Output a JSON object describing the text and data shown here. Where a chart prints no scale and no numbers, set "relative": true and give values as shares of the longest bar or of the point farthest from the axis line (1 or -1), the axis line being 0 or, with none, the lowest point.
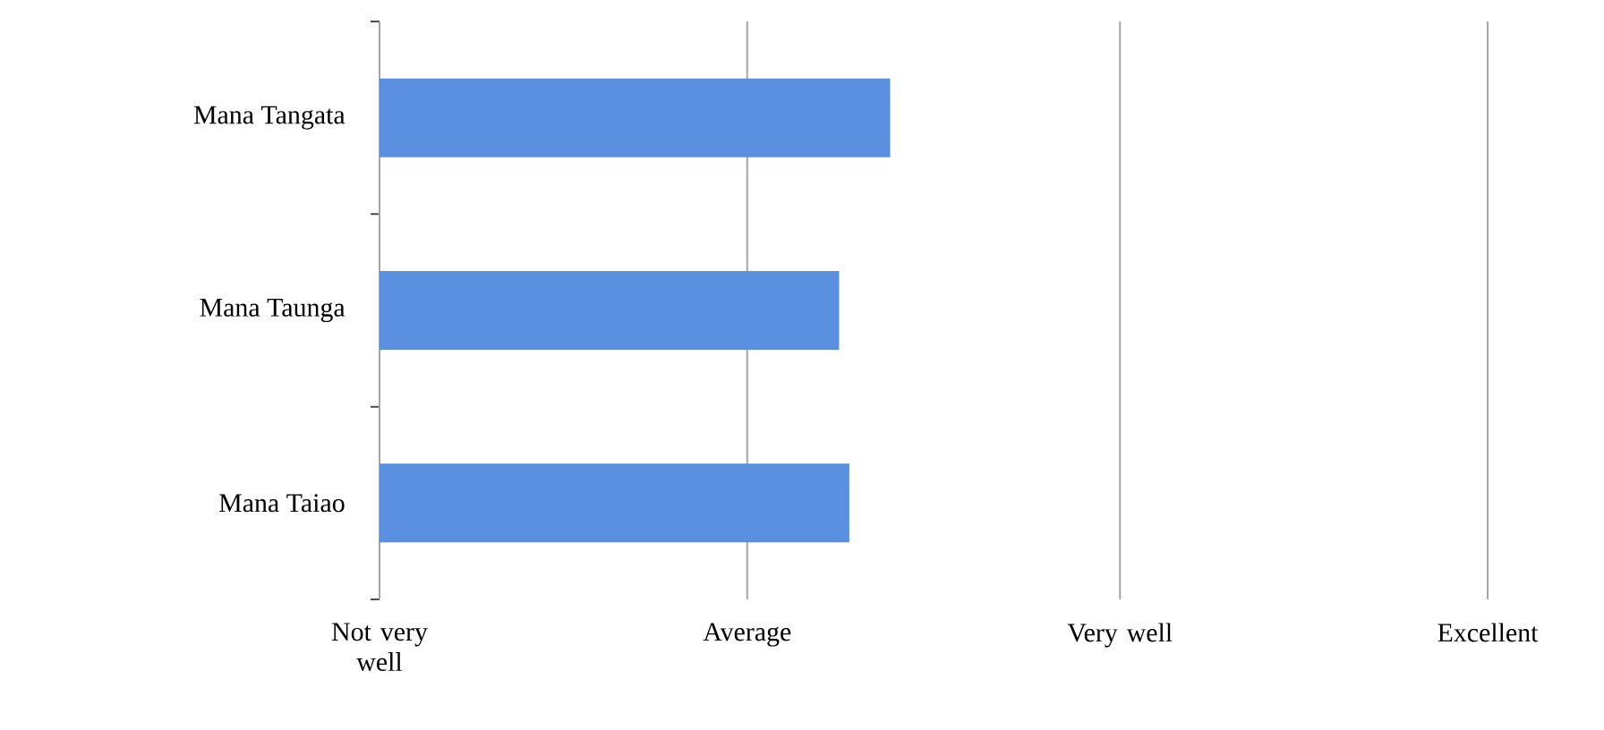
{
  "chart_data": {
    "type": "bar",
    "orientation": "horizontal",
    "relative": true,
    "categories": [
      "Mana Tangata",
      "Mana Taunga",
      "Mana Taiao"
    ],
    "values": [
      1,
      0.9,
      0.92
    ],
    "color": "#5b8fe0",
    "annotations": [
      "Not very well"
    ],
    "ref_lines": [
      {
        "axis": "x",
        "value": 0.72,
        "label": "Average",
        "color": "#a6a6a6"
      },
      {
        "axis": "x",
        "value": 1.45,
        "label": "Very well",
        "color": "#a6a6a6"
      },
      {
        "axis": "x",
        "value": 2.17,
        "label": "Excellent",
        "color": "#a6a6a6"
      }
    ]
  }
}
